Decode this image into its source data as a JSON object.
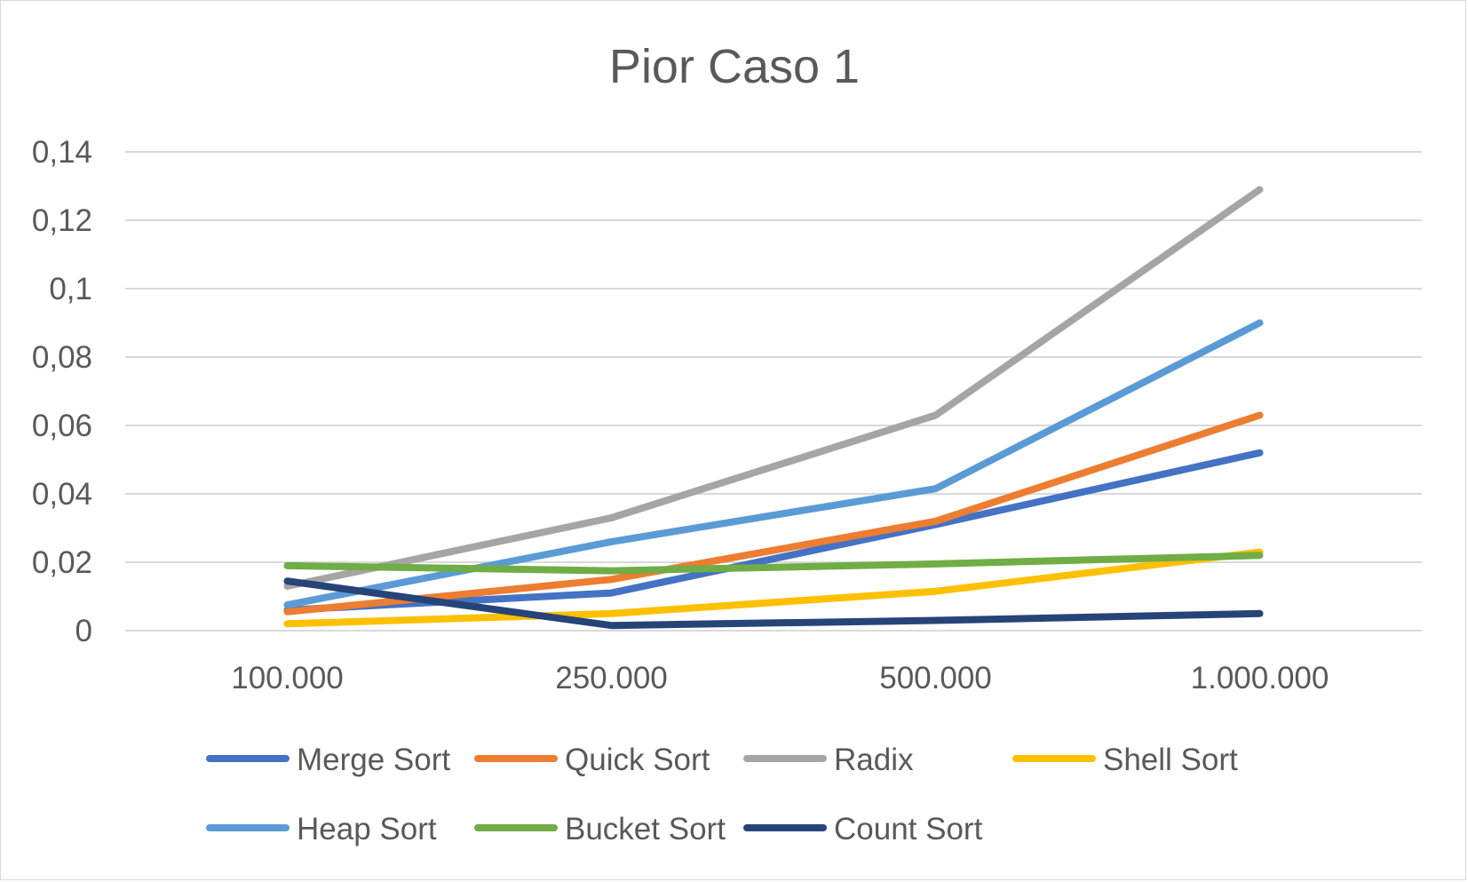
{
  "chart_data": {
    "type": "line",
    "title": "Pior Caso 1",
    "xlabel": "",
    "ylabel": "",
    "categories": [
      "100.000",
      "250.000",
      "500.000",
      "1.000.000"
    ],
    "ylim": [
      0,
      0.14
    ],
    "yticks": [
      0,
      0.02,
      0.04,
      0.06,
      0.08,
      0.1,
      0.12,
      0.14
    ],
    "ytick_labels": [
      "0",
      "0,02",
      "0,04",
      "0,06",
      "0,08",
      "0,1",
      "0,12",
      "0,14"
    ],
    "grid": true,
    "legend_position": "bottom",
    "series": [
      {
        "name": "Merge Sort",
        "color": "#4472C4",
        "values": [
          0.006,
          0.011,
          0.031,
          0.052
        ]
      },
      {
        "name": "Quick Sort",
        "color": "#ED7D31",
        "values": [
          0.0055,
          0.015,
          0.032,
          0.063
        ]
      },
      {
        "name": "Radix",
        "color": "#A5A5A5",
        "values": [
          0.013,
          0.033,
          0.063,
          0.129
        ]
      },
      {
        "name": "Shell Sort",
        "color": "#FFC000",
        "values": [
          0.002,
          0.005,
          0.0115,
          0.023
        ]
      },
      {
        "name": "Heap Sort",
        "color": "#5B9BD5",
        "values": [
          0.0075,
          0.026,
          0.0415,
          0.09
        ]
      },
      {
        "name": "Bucket Sort",
        "color": "#70AD47",
        "values": [
          0.019,
          0.0175,
          0.0195,
          0.022
        ]
      },
      {
        "name": "Count Sort",
        "color": "#264478",
        "values": [
          0.0145,
          0.0015,
          0.003,
          0.005
        ]
      }
    ]
  }
}
